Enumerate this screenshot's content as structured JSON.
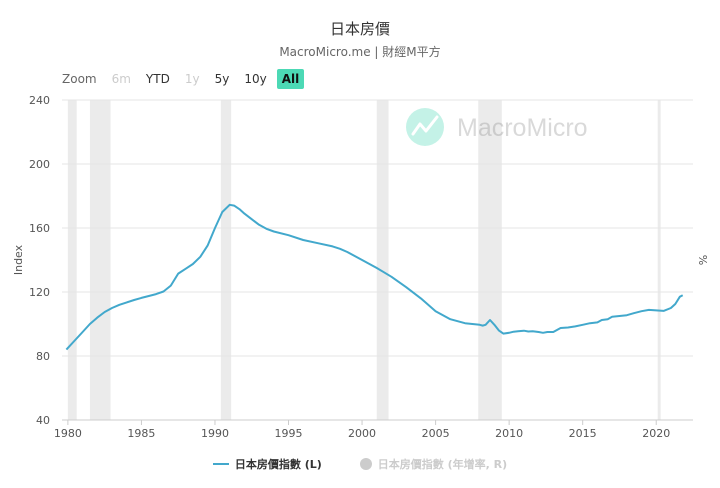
{
  "title": "日本房價",
  "subtitle": "MacroMicro.me | 財經M平方",
  "zoom": {
    "label": "Zoom",
    "buttons": [
      {
        "label": "6m",
        "state": "disabled"
      },
      {
        "label": "YTD",
        "state": "normal"
      },
      {
        "label": "1y",
        "state": "disabled"
      },
      {
        "label": "5y",
        "state": "normal"
      },
      {
        "label": "10y",
        "state": "normal"
      },
      {
        "label": "All",
        "state": "active"
      }
    ]
  },
  "watermark": "MacroMicro",
  "colors": {
    "series": "#42a8cc",
    "band": "#ebebeb",
    "active_btn": "#4cd9b5",
    "hidden_series": "#cccccc"
  },
  "chart_data": {
    "type": "line",
    "ylabel": "Index",
    "ylabel_right": "%",
    "ylim": [
      40,
      240
    ],
    "y_ticks": [
      40,
      80,
      120,
      160,
      200,
      240
    ],
    "xlim": [
      1979.6,
      2022.5
    ],
    "x_ticks": [
      1980,
      1985,
      1990,
      1995,
      2000,
      2005,
      2010,
      2015,
      2020
    ],
    "recession_bands": [
      [
        1980.0,
        1980.6
      ],
      [
        1981.5,
        1982.9
      ],
      [
        1990.4,
        1991.1
      ],
      [
        2001.0,
        2001.8
      ],
      [
        2007.9,
        2009.5
      ],
      [
        2020.1,
        2020.3
      ]
    ],
    "series": [
      {
        "name": "日本房價指數 (L)",
        "visible": true,
        "x": [
          1979.9,
          1980.5,
          1981.0,
          1981.5,
          1982.0,
          1982.5,
          1983.0,
          1983.5,
          1984.0,
          1984.5,
          1985.0,
          1985.5,
          1986.0,
          1986.5,
          1987.0,
          1987.5,
          1988.0,
          1988.5,
          1989.0,
          1989.5,
          1990.0,
          1990.5,
          1991.0,
          1991.3,
          1991.7,
          1992.0,
          1992.5,
          1993.0,
          1993.5,
          1994.0,
          1995.0,
          1996.0,
          1997.0,
          1998.0,
          1998.5,
          1999.0,
          2000.0,
          2001.0,
          2002.0,
          2003.0,
          2004.0,
          2005.0,
          2006.0,
          2007.0,
          2007.5,
          2008.0,
          2008.2,
          2008.4,
          2008.7,
          2009.0,
          2009.3,
          2009.6,
          2010.0,
          2010.3,
          2010.6,
          2011.0,
          2011.3,
          2011.6,
          2012.0,
          2012.3,
          2012.6,
          2013.0,
          2013.5,
          2014.0,
          2014.5,
          2015.0,
          2015.5,
          2016.0,
          2016.3,
          2016.7,
          2017.0,
          2017.5,
          2018.0,
          2018.5,
          2019.0,
          2019.5,
          2020.0,
          2020.5,
          2021.0,
          2021.3,
          2021.6,
          2021.8
        ],
        "y": [
          84,
          90,
          95,
          100,
          104,
          107.5,
          110,
          112,
          113.5,
          115,
          116.3,
          117.5,
          118.7,
          120.3,
          124,
          131.5,
          134.5,
          137.5,
          142,
          149,
          160,
          170,
          174.5,
          174,
          171.5,
          169,
          165.5,
          162,
          159.5,
          157.8,
          155.5,
          152.5,
          150.5,
          148.5,
          147,
          145,
          140,
          135,
          129.5,
          123,
          116,
          108,
          103,
          100.5,
          100,
          99.5,
          99,
          99.5,
          102.5,
          99.5,
          96,
          94,
          94.5,
          95.2,
          95.5,
          95.8,
          95.3,
          95.5,
          95,
          94.5,
          95,
          95,
          97.5,
          97.8,
          98.5,
          99.5,
          100.5,
          101,
          102.5,
          103,
          104.5,
          105,
          105.5,
          106.8,
          108,
          108.8,
          108.5,
          108.2,
          110,
          112.5,
          117,
          118
        ]
      },
      {
        "name": "日本房價指數 (年增率, R)",
        "visible": false
      }
    ]
  }
}
